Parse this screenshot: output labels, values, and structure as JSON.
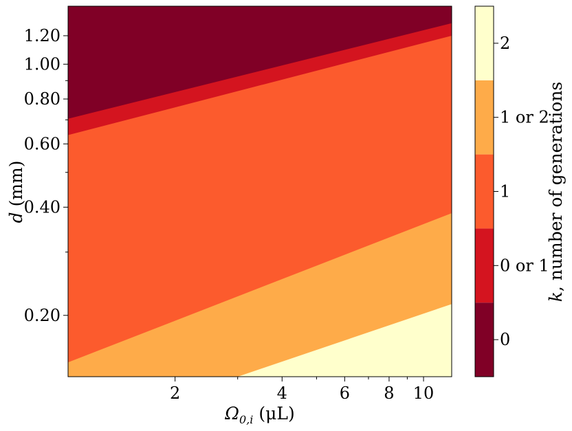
{
  "chart_data": {
    "type": "heatmap",
    "title": "",
    "xlabel": "Ω",
    "xlabel_sub": "0,i",
    "xlabel_unit": " (μL)",
    "ylabel": "d",
    "ylabel_unit": " (mm)",
    "xscale": "log",
    "yscale": "log",
    "xlim": [
      1.0,
      12.0
    ],
    "ylim": [
      0.135,
      1.45
    ],
    "x_ticks": [
      {
        "value": 2,
        "label": "2"
      },
      {
        "value": 4,
        "label": "4"
      },
      {
        "value": 6,
        "label": "6"
      },
      {
        "value": 8,
        "label": "8"
      },
      {
        "value": 10,
        "label": "10"
      }
    ],
    "x_minor_ticks": [
      3,
      5,
      7,
      9
    ],
    "y_ticks": [
      {
        "value": 0.2,
        "label": "0.20"
      },
      {
        "value": 0.4,
        "label": "0.40"
      },
      {
        "value": 0.6,
        "label": "0.60"
      },
      {
        "value": 0.8,
        "label": "0.80"
      },
      {
        "value": 1.0,
        "label": "1.00"
      },
      {
        "value": 1.2,
        "label": "1.20"
      }
    ],
    "y_minor_ticks": [
      0.3,
      0.5,
      0.7,
      0.9
    ],
    "regions": [
      {
        "label": "0",
        "color": "#800026"
      },
      {
        "label": "0 or 1",
        "color": "#d4141f"
      },
      {
        "label": "1",
        "color": "#fc5b2d"
      },
      {
        "label": "1 or 2",
        "color": "#feab49"
      },
      {
        "label": "2",
        "color": "#ffffcc"
      }
    ],
    "boundaries": [
      {
        "between": [
          "0",
          "0 or 1"
        ],
        "points": [
          [
            1.0,
            0.705
          ],
          [
            12.0,
            1.3
          ]
        ]
      },
      {
        "between": [
          "0 or 1",
          "1"
        ],
        "points": [
          [
            1.0,
            0.635
          ],
          [
            12.0,
            1.2
          ]
        ]
      },
      {
        "between": [
          "1",
          "1 or 2"
        ],
        "points": [
          [
            1.0,
            0.148
          ],
          [
            12.0,
            0.385
          ]
        ]
      },
      {
        "between": [
          "1 or 2",
          "2"
        ],
        "points": [
          [
            3.0,
            0.135
          ],
          [
            12.0,
            0.215
          ]
        ]
      }
    ],
    "colorbar": {
      "label": "k, number of generations",
      "label_var": "k",
      "label_rest": ", number of generations",
      "ticks": [
        "0",
        "0 or 1",
        "1",
        "1 or 2",
        "2"
      ]
    },
    "legend": "none",
    "grid": false
  }
}
